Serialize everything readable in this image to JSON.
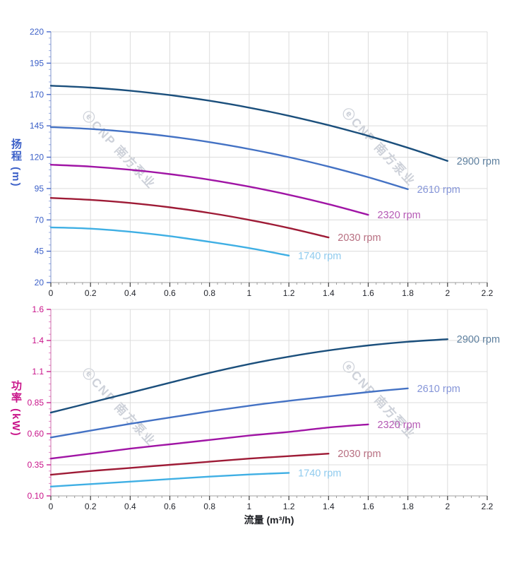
{
  "watermark": {
    "text": "ⓔCNP 南方泵业"
  },
  "chart_data": [
    {
      "type": "line",
      "name": "head-flow-chart",
      "title": "",
      "xlabel": "",
      "ylabel": "扬程 (m)",
      "xlim": [
        0,
        2.2
      ],
      "ylim": [
        20,
        220
      ],
      "grid": true,
      "legend_position": "end-of-curve",
      "axis_color": "#3c60c8",
      "x_ticks": {
        "values": [
          0,
          0.2,
          0.4,
          0.6,
          0.8,
          1,
          1.2,
          1.4,
          1.6,
          1.8,
          2,
          2.2
        ],
        "labels": [
          "0",
          "0.2",
          "0.4",
          "0.6",
          "0.8",
          "1",
          "1.2",
          "1.4",
          "1.6",
          "1.8",
          "2",
          "2.2"
        ],
        "minor_step": 0.04
      },
      "y_ticks": {
        "values": [
          20,
          45,
          70,
          95,
          120,
          145,
          170,
          195,
          220
        ],
        "labels": [
          "20",
          "45",
          "70",
          "95",
          "120",
          "145",
          "170",
          "195",
          "220"
        ],
        "minor_step": 5
      },
      "series": [
        {
          "name": "2900 rpm",
          "color": "#1b4f7c",
          "label_color": "#5d7f9e",
          "x": [
            0,
            0.2,
            0.4,
            0.6,
            0.8,
            1.0,
            1.2,
            1.4,
            1.6,
            1.8,
            2.0
          ],
          "y": [
            177,
            175.5,
            173,
            169.5,
            165,
            159.5,
            153,
            145.5,
            137,
            127.5,
            117
          ]
        },
        {
          "name": "2610 rpm",
          "color": "#4472c4",
          "label_color": "#8595d8",
          "x": [
            0,
            0.2,
            0.4,
            0.6,
            0.8,
            1.0,
            1.2,
            1.4,
            1.6,
            1.8
          ],
          "y": [
            144,
            142.5,
            140,
            136.5,
            132,
            126.5,
            120,
            112.5,
            104,
            94.5
          ]
        },
        {
          "name": "2320 rpm",
          "color": "#a015a5",
          "label_color": "#b55ab5",
          "x": [
            0,
            0.2,
            0.4,
            0.6,
            0.8,
            1.0,
            1.2,
            1.4,
            1.6
          ],
          "y": [
            114,
            112.5,
            110,
            106.5,
            102,
            96.5,
            90,
            82.5,
            74
          ]
        },
        {
          "name": "2030 rpm",
          "color": "#9e1b36",
          "label_color": "#b76e80",
          "x": [
            0,
            0.2,
            0.4,
            0.6,
            0.8,
            1.0,
            1.2,
            1.4
          ],
          "y": [
            87.5,
            86,
            83.5,
            80,
            75.5,
            70,
            63.5,
            56
          ]
        },
        {
          "name": "1740 rpm",
          "color": "#3fafe4",
          "label_color": "#90cbee",
          "x": [
            0,
            0.2,
            0.4,
            0.6,
            0.8,
            1.0,
            1.2
          ],
          "y": [
            64,
            63,
            60.5,
            57,
            52.5,
            47.5,
            41.5
          ]
        }
      ]
    },
    {
      "type": "line",
      "name": "power-flow-chart",
      "title": "",
      "xlabel": "流量 (m³/h)",
      "ylabel": "功率 (kW)",
      "xlim": [
        0,
        2.2
      ],
      "ylim": [
        0.1,
        1.6
      ],
      "grid": true,
      "legend_position": "end-of-curve",
      "axis_color": "#c9148a",
      "x_ticks": {
        "values": [
          0,
          0.2,
          0.4,
          0.6,
          0.8,
          1,
          1.2,
          1.4,
          1.6,
          1.8,
          2,
          2.2
        ],
        "labels": [
          "0",
          "0.2",
          "0.4",
          "0.6",
          "0.8",
          "1",
          "1.2",
          "1.4",
          "1.6",
          "1.8",
          "2",
          "2.2"
        ],
        "minor_step": 0.04
      },
      "y_ticks": {
        "values": [
          0.1,
          0.35,
          0.6,
          0.85,
          1.1,
          1.35,
          1.6
        ],
        "labels": [
          "0.10",
          "0.35",
          "0.60",
          "0.85",
          "1.1",
          "1.4",
          "1.6"
        ],
        "minor_step": 0.05
      },
      "series": [
        {
          "name": "2900 rpm",
          "color": "#1b4f7c",
          "label_color": "#5d7f9e",
          "x": [
            0,
            0.2,
            0.4,
            0.6,
            0.8,
            1.0,
            1.2,
            1.4,
            1.6,
            1.8,
            2.0
          ],
          "y": [
            0.77,
            0.85,
            0.93,
            1.01,
            1.09,
            1.16,
            1.22,
            1.27,
            1.31,
            1.34,
            1.36
          ]
        },
        {
          "name": "2610 rpm",
          "color": "#4472c4",
          "label_color": "#8595d8",
          "x": [
            0,
            0.2,
            0.4,
            0.6,
            0.8,
            1.0,
            1.2,
            1.4,
            1.6,
            1.8
          ],
          "y": [
            0.57,
            0.625,
            0.68,
            0.73,
            0.78,
            0.825,
            0.865,
            0.9,
            0.935,
            0.965
          ]
        },
        {
          "name": "2320 rpm",
          "color": "#a015a5",
          "label_color": "#b55ab5",
          "x": [
            0,
            0.2,
            0.4,
            0.6,
            0.8,
            1.0,
            1.2,
            1.4,
            1.6
          ],
          "y": [
            0.4,
            0.44,
            0.48,
            0.515,
            0.55,
            0.585,
            0.615,
            0.65,
            0.675
          ]
        },
        {
          "name": "2030 rpm",
          "color": "#9e1b36",
          "label_color": "#b76e80",
          "x": [
            0,
            0.2,
            0.4,
            0.6,
            0.8,
            1.0,
            1.2,
            1.4
          ],
          "y": [
            0.27,
            0.3,
            0.325,
            0.35,
            0.375,
            0.4,
            0.42,
            0.44
          ]
        },
        {
          "name": "1740 rpm",
          "color": "#3fafe4",
          "label_color": "#90cbee",
          "x": [
            0,
            0.2,
            0.4,
            0.6,
            0.8,
            1.0,
            1.2
          ],
          "y": [
            0.175,
            0.195,
            0.215,
            0.235,
            0.255,
            0.272,
            0.285
          ]
        }
      ]
    }
  ]
}
